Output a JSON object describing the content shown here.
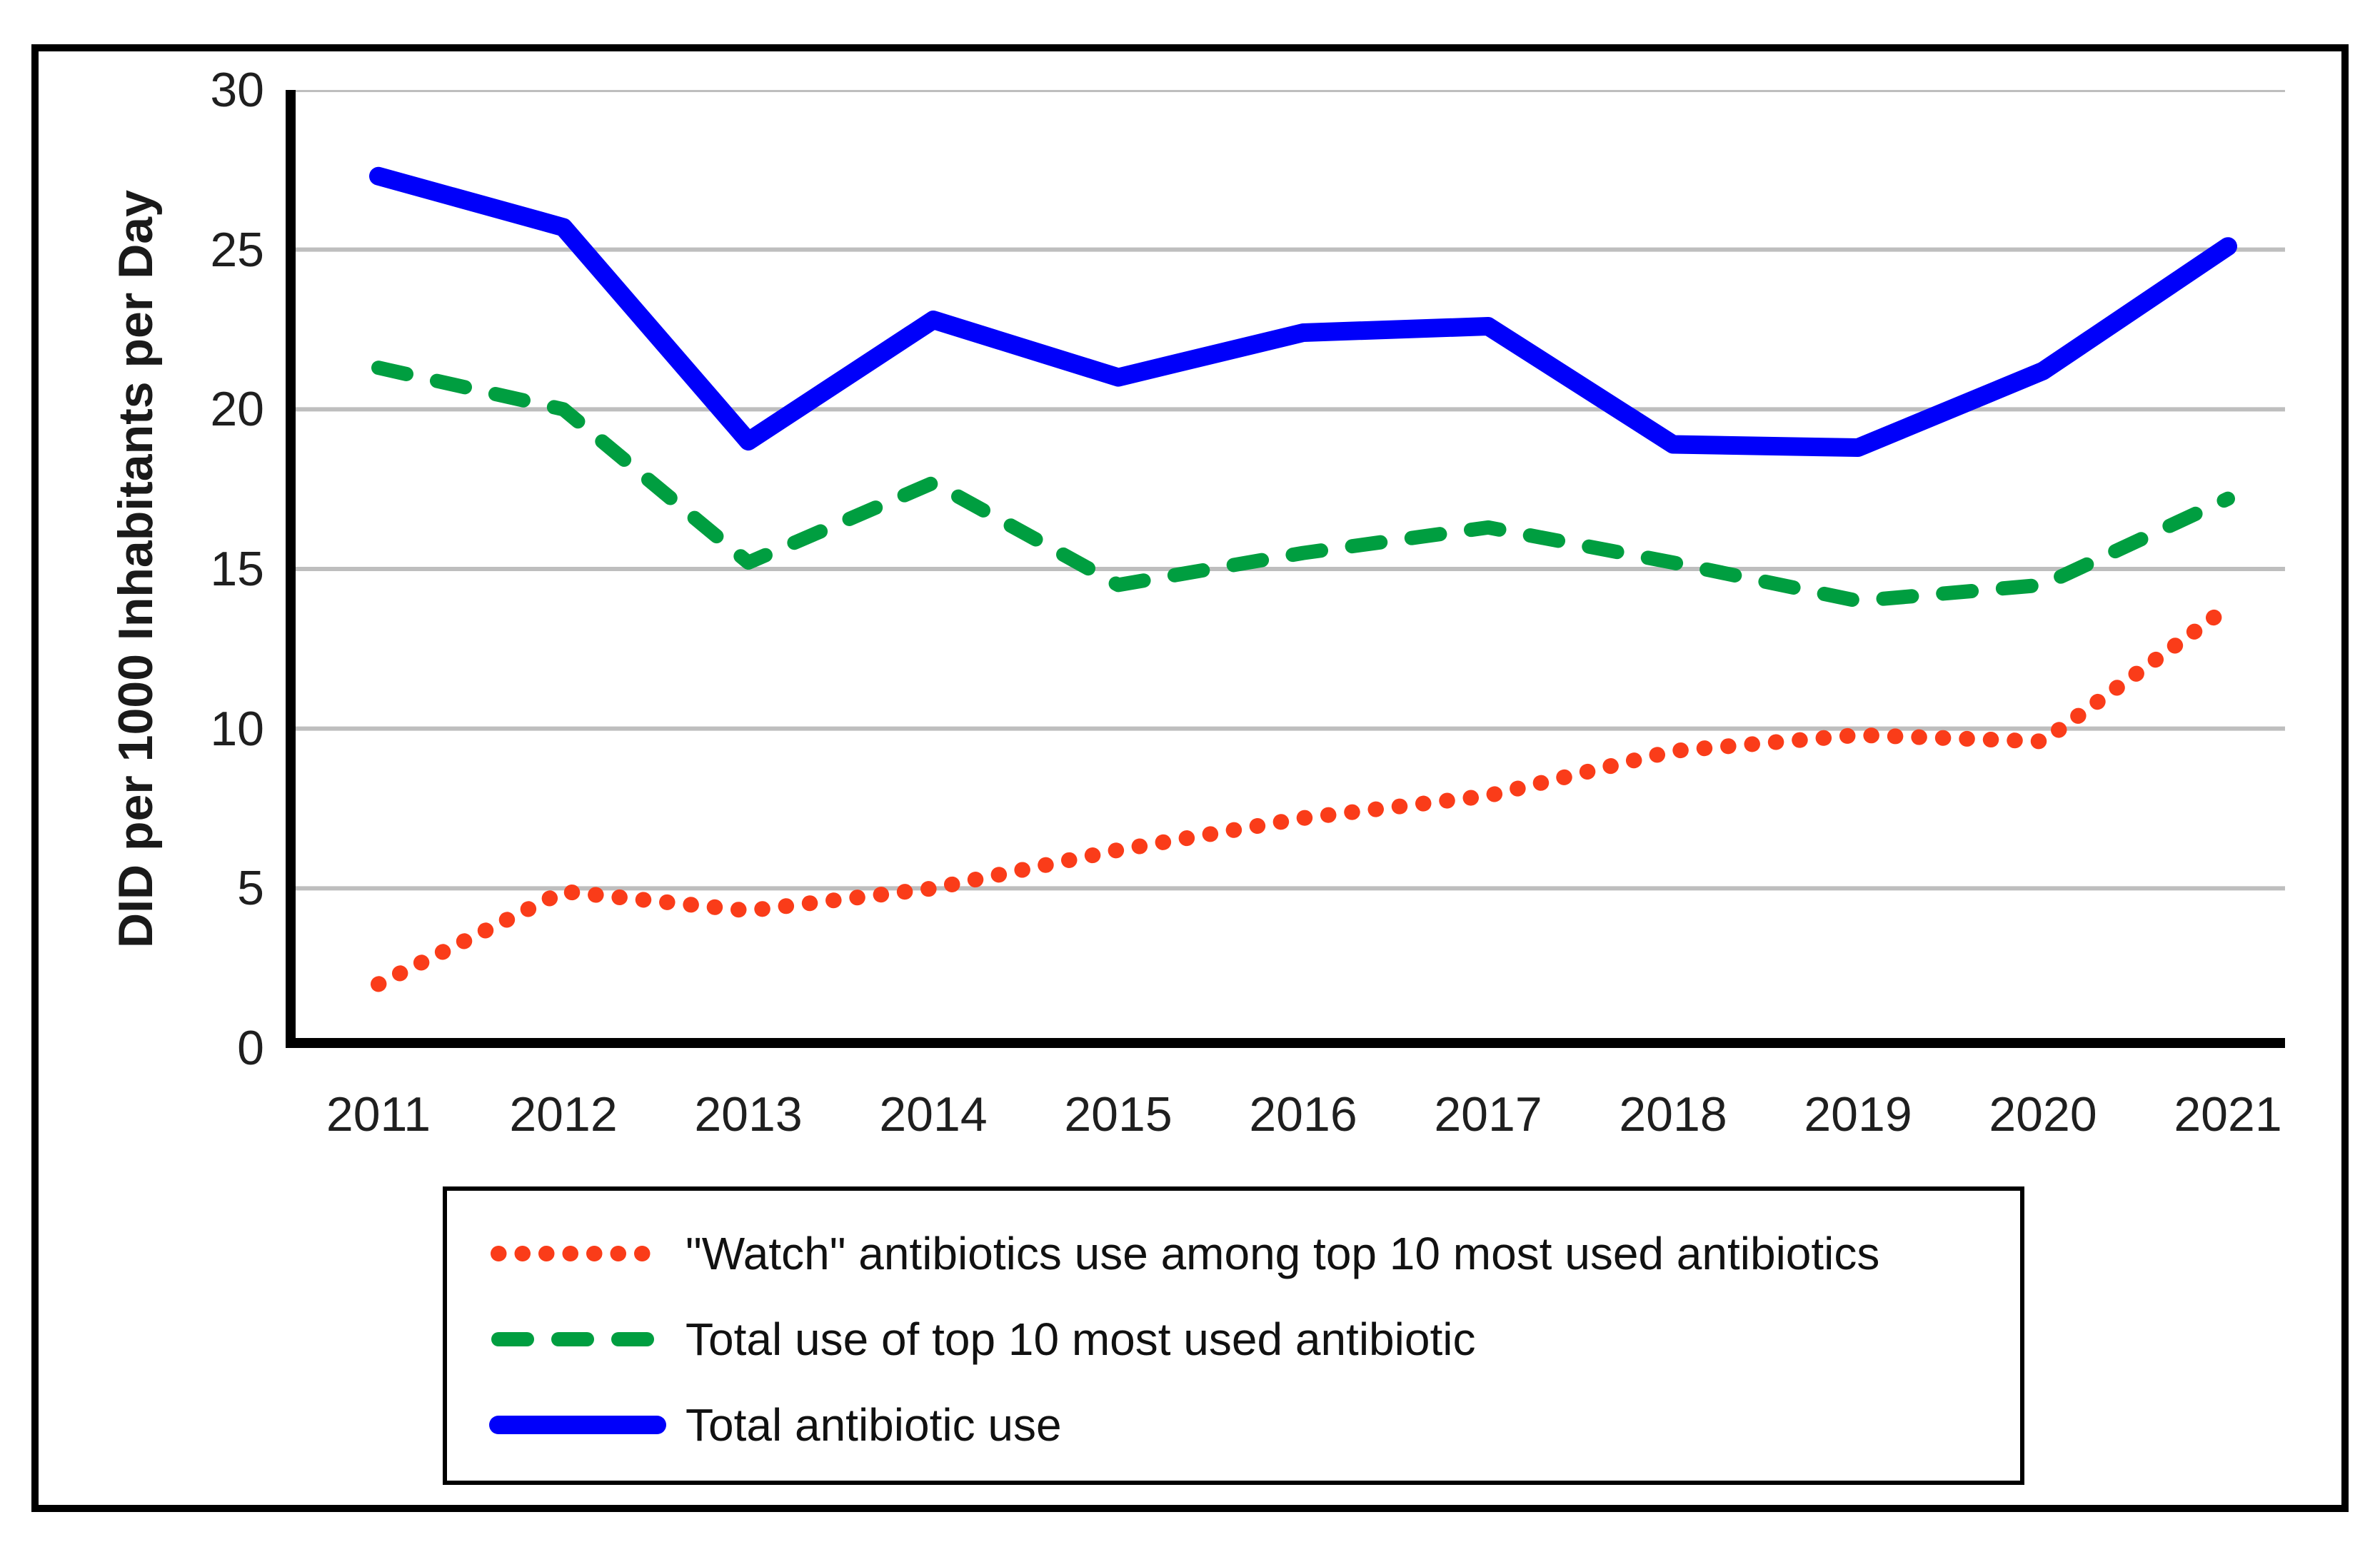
{
  "figure": {
    "background": "#FFFFFF",
    "border_color": "#000000"
  },
  "axis": {
    "grid_color": "#BEBEBE",
    "axis_color": "#000000",
    "tick_color": "#1F1F1F"
  },
  "chart_data": {
    "type": "line",
    "title": "",
    "xlabel": "",
    "ylabel": "DID per 1000 Inhabitants per Day",
    "ylim": [
      0,
      30
    ],
    "yticks": [
      0,
      5,
      10,
      15,
      20,
      25,
      30
    ],
    "grid": "horizontal",
    "legend_position": "bottom",
    "categories": [
      "2011",
      "2012",
      "2013",
      "2014",
      "2015",
      "2016",
      "2017",
      "2018",
      "2019",
      "2020",
      "2021"
    ],
    "series": [
      {
        "name": "\"Watch\" antibiotics use among top 10 most used antibiotics",
        "style": "dotted",
        "color": "#FA3C19",
        "values": [
          2.0,
          4.9,
          4.3,
          5.0,
          6.2,
          7.2,
          7.9,
          9.3,
          9.8,
          9.6,
          13.8
        ]
      },
      {
        "name": "Total use of top 10 most used antibiotic",
        "style": "dashed",
        "color": "#009E40",
        "values": [
          21.3,
          20.0,
          15.2,
          17.7,
          14.5,
          15.5,
          16.3,
          15.2,
          14.0,
          14.5,
          17.2
        ]
      },
      {
        "name": "Total antibiotic use",
        "style": "solid",
        "color": "#0000FA",
        "values": [
          27.3,
          25.7,
          19.0,
          22.8,
          21.0,
          22.4,
          22.6,
          18.9,
          18.8,
          21.2,
          25.1
        ]
      }
    ]
  }
}
